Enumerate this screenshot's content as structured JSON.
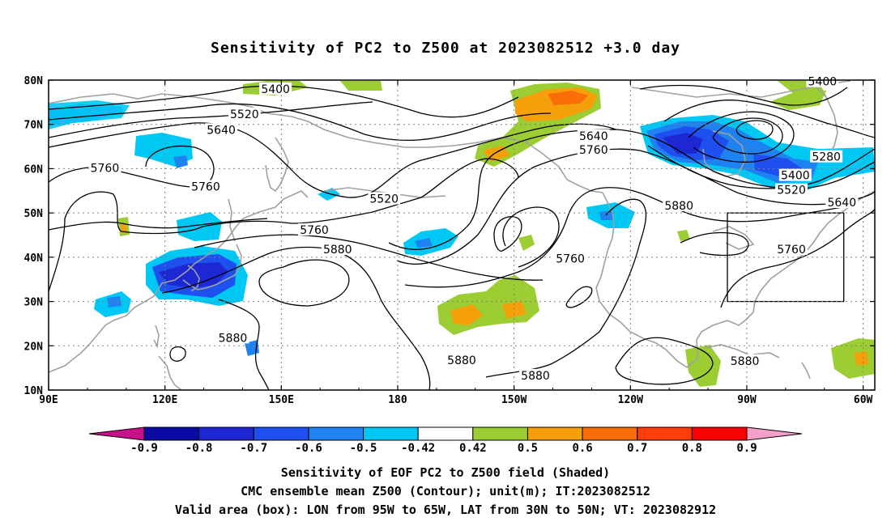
{
  "title": "Sensitivity of PC2 to Z500 at 2023082512 +3.0 day",
  "map": {
    "lon_range": [
      90,
      303
    ],
    "lat_range": [
      10,
      80
    ],
    "lon_ticks": [
      {
        "lon": 90,
        "label": "90E"
      },
      {
        "lon": 120,
        "label": "120E"
      },
      {
        "lon": 150,
        "label": "150E"
      },
      {
        "lon": 180,
        "label": "180"
      },
      {
        "lon": 210,
        "label": "150W"
      },
      {
        "lon": 240,
        "label": "120W"
      },
      {
        "lon": 270,
        "label": "90W"
      },
      {
        "lon": 300,
        "label": "60W"
      }
    ],
    "lat_ticks": [
      {
        "lat": 80,
        "label": "80N"
      },
      {
        "lat": 70,
        "label": "70N"
      },
      {
        "lat": 60,
        "label": "60N"
      },
      {
        "lat": 50,
        "label": "50N"
      },
      {
        "lat": 40,
        "label": "40N"
      },
      {
        "lat": 30,
        "label": "30N"
      },
      {
        "lat": 20,
        "label": "20N"
      },
      {
        "lat": 10,
        "label": "10N"
      }
    ],
    "grid": "dotted",
    "valid_box": {
      "lon_min": 265,
      "lon_max": 295,
      "lat_min": 30,
      "lat_max": 50
    },
    "contour_labels": [
      {
        "text": "5400",
        "lon": 148.5,
        "lat": 78
      },
      {
        "text": "5520",
        "lon": 140.5,
        "lat": 72.3
      },
      {
        "text": "5640",
        "lon": 134.5,
        "lat": 68.8
      },
      {
        "text": "5760",
        "lon": 104.5,
        "lat": 60.2
      },
      {
        "text": "5760",
        "lon": 130.5,
        "lat": 56
      },
      {
        "text": "5520",
        "lon": 176.5,
        "lat": 53.2
      },
      {
        "text": "5760",
        "lon": 158.5,
        "lat": 46.2
      },
      {
        "text": "5880",
        "lon": 164.5,
        "lat": 41.8
      },
      {
        "text": "5760",
        "lon": 224.5,
        "lat": 39.7
      },
      {
        "text": "5640",
        "lon": 230.5,
        "lat": 67.4
      },
      {
        "text": "5760",
        "lon": 230.5,
        "lat": 64.3
      },
      {
        "text": "5880",
        "lon": 252.5,
        "lat": 51.7
      },
      {
        "text": "5400",
        "lon": 289.5,
        "lat": 79.7
      },
      {
        "text": "5280",
        "lon": 290.5,
        "lat": 62.7
      },
      {
        "text": "5400",
        "lon": 282.5,
        "lat": 58.5
      },
      {
        "text": "5520",
        "lon": 281.5,
        "lat": 55.2
      },
      {
        "text": "5640",
        "lon": 294.5,
        "lat": 52.4
      },
      {
        "text": "5760",
        "lon": 281.5,
        "lat": 41.8
      },
      {
        "text": "5880",
        "lon": 137.5,
        "lat": 21.8
      },
      {
        "text": "5880",
        "lon": 196.5,
        "lat": 16.8
      },
      {
        "text": "5880",
        "lon": 215.5,
        "lat": 13.3
      },
      {
        "text": "5880",
        "lon": 269.5,
        "lat": 16.6
      }
    ]
  },
  "colorbar": {
    "labels": [
      "-0.9",
      "-0.8",
      "-0.7",
      "-0.6",
      "-0.5",
      "-0.42",
      "0.42",
      "0.5",
      "0.6",
      "0.7",
      "0.8",
      "0.9"
    ],
    "colors": [
      "#c8108a",
      "#0a0aa5",
      "#1e28d2",
      "#1e50f0",
      "#1e82f0",
      "#00c8f5",
      "#ffffff",
      "#9ccd32",
      "#f5a00a",
      "#fa6e0a",
      "#ff3c0a",
      "#ff0000",
      "#f5a0c8"
    ]
  },
  "captions": {
    "line1": "Sensitivity of EOF PC2 to Z500 field (Shaded)",
    "line2": "CMC ensemble mean Z500 (Contour); unit(m); IT:2023082512",
    "line3": "Valid area (box): LON from 95W to 65W, LAT from 30N to 50N; VT: 2023082912"
  }
}
